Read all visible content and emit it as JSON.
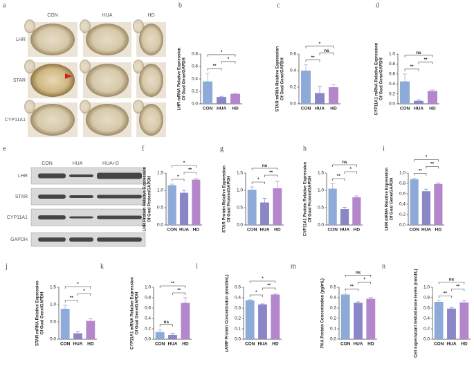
{
  "ihc": {
    "panel": "a",
    "columns": [
      "CON",
      "HUA",
      "HD"
    ],
    "rows": [
      "LHR",
      "STAR",
      "CYP11A1"
    ]
  },
  "western": {
    "panel": "e",
    "columns": [
      "CON",
      "HUA",
      "HUA+D"
    ],
    "rows": [
      "LHR",
      "STAR",
      "CYP11A1",
      "GAPDH"
    ]
  },
  "chart_data": [
    {
      "type": "bar",
      "panel": "b",
      "ylabel": [
        "LHR mRNA Relative Expression",
        "Of Goal Gene/GAPDH"
      ],
      "categories": [
        "CON",
        "HUA",
        "HD"
      ],
      "values": [
        0.36,
        0.11,
        0.16
      ],
      "errors": [
        0.13,
        0.01,
        0.01
      ],
      "colors": [
        "#8eaad8",
        "#8a86c8",
        "#b486cc"
      ],
      "ylim": [
        0,
        0.8
      ],
      "yticks": [
        {
          "value": 0,
          "label": "0.0"
        },
        0.2,
        0.4,
        0.6,
        0.8
      ],
      "significance": [
        {
          "groups": [
            "CON",
            "HUA"
          ],
          "label": "**"
        },
        {
          "groups": [
            "HUA",
            "HD"
          ],
          "label": "*"
        },
        {
          "groups": [
            "CON",
            "HD"
          ],
          "label": "*"
        }
      ]
    },
    {
      "type": "bar",
      "panel": "c",
      "ylabel": [
        "STAR mRNA Relative Expression",
        "Of Goal Gene/GAPDH"
      ],
      "categories": [
        "CON",
        "HUA",
        "HD"
      ],
      "values": [
        0.4,
        0.13,
        0.2
      ],
      "errors": [
        0.07,
        0.08,
        0.03
      ],
      "colors": [
        "#8eaad8",
        "#8a86c8",
        "#b486cc"
      ],
      "ylim": [
        0,
        0.6
      ],
      "yticks": [
        {
          "value": 0,
          "label": "0.0"
        },
        0.2,
        0.4,
        0.6
      ],
      "significance": [
        {
          "groups": [
            "CON",
            "HUA"
          ],
          "label": "**"
        },
        {
          "groups": [
            "HUA",
            "HD"
          ],
          "label": "ns"
        },
        {
          "groups": [
            "CON",
            "HD"
          ],
          "label": "*"
        }
      ]
    },
    {
      "type": "bar",
      "panel": "d",
      "ylabel": [
        "CYP11A1 mRNA Relative Expression",
        "Of Goal Gene/GAPDH"
      ],
      "categories": [
        "CON",
        "HUA",
        "HD"
      ],
      "values": [
        0.45,
        0.06,
        0.26
      ],
      "errors": [
        0.15,
        0.02,
        0.02
      ],
      "colors": [
        "#8eaad8",
        "#8a86c8",
        "#b486cc"
      ],
      "ylim": [
        0,
        1.0
      ],
      "yticks": [
        {
          "value": 0,
          "label": "0.0"
        },
        0.2,
        0.4,
        0.6,
        0.8,
        {
          "value": 1.0,
          "label": "1.0"
        }
      ],
      "significance": [
        {
          "groups": [
            "CON",
            "HUA"
          ],
          "label": "**"
        },
        {
          "groups": [
            "HUA",
            "HD"
          ],
          "label": "**"
        },
        {
          "groups": [
            "CON",
            "HD"
          ],
          "label": "ns"
        }
      ]
    },
    {
      "type": "bar",
      "panel": "f",
      "ylabel": [
        "LHR Protein Relative Expression",
        "Of Goal Protein/GAPDH"
      ],
      "categories": [
        "CON",
        "HUA",
        "HD"
      ],
      "values": [
        1.15,
        0.93,
        1.31
      ],
      "errors": [
        0.03,
        0.08,
        0.03
      ],
      "colors": [
        "#8eaad8",
        "#8a86c8",
        "#b486cc"
      ],
      "ylim": [
        0,
        1.5
      ],
      "yticks": [
        {
          "value": 0,
          "label": "0.0"
        },
        0.5,
        {
          "value": 1.0,
          "label": "1.0"
        },
        1.5
      ],
      "significance": [
        {
          "groups": [
            "CON",
            "HUA"
          ],
          "label": "*"
        },
        {
          "groups": [
            "HUA",
            "HD"
          ],
          "label": "**"
        },
        {
          "groups": [
            "CON",
            "HD"
          ],
          "label": "*"
        }
      ]
    },
    {
      "type": "bar",
      "panel": "g",
      "ylabel": [
        "STAR Protein Relative Expression",
        "Of Goal Protein/GAPDH"
      ],
      "categories": [
        "CON",
        "HUA",
        "HD"
      ],
      "values": [
        1.02,
        0.65,
        1.06
      ],
      "errors": [
        0.08,
        0.12,
        0.2
      ],
      "colors": [
        "#8eaad8",
        "#8a86c8",
        "#b486cc"
      ],
      "ylim": [
        0,
        1.5
      ],
      "yticks": [
        {
          "value": 0,
          "label": "0.0"
        },
        0.5,
        {
          "value": 1.0,
          "label": "1.0"
        },
        1.5
      ],
      "significance": [
        {
          "groups": [
            "CON",
            "HUA"
          ],
          "label": "*"
        },
        {
          "groups": [
            "HUA",
            "HD"
          ],
          "label": "**"
        },
        {
          "groups": [
            "CON",
            "HD"
          ],
          "label": "ns"
        }
      ]
    },
    {
      "type": "bar",
      "panel": "h",
      "ylabel": [
        "CYP11A1 Protein Relative Expression",
        "Of Goal Protein/GAPDH"
      ],
      "categories": [
        "CON",
        "HUA",
        "HD"
      ],
      "values": [
        1.05,
        0.46,
        0.8
      ],
      "errors": [
        0.15,
        0.05,
        0.04
      ],
      "colors": [
        "#8eaad8",
        "#8a86c8",
        "#b486cc"
      ],
      "ylim": [
        0,
        1.5
      ],
      "yticks": [
        {
          "value": 0,
          "label": "0.0"
        },
        0.5,
        {
          "value": 1.0,
          "label": "1.0"
        },
        1.5
      ],
      "significance": [
        {
          "groups": [
            "CON",
            "HUA"
          ],
          "label": "**"
        },
        {
          "groups": [
            "HUA",
            "HD"
          ],
          "label": "*"
        },
        {
          "groups": [
            "CON",
            "HD"
          ],
          "label": "ns"
        }
      ]
    },
    {
      "type": "bar",
      "panel": "i",
      "ylabel": [
        "LHR mRNA Relative Expression",
        "Of Goal Gene/GAPDH"
      ],
      "categories": [
        "CON",
        "HUA",
        "HD"
      ],
      "values": [
        0.88,
        0.65,
        0.79
      ],
      "errors": [
        0.02,
        0.04,
        0.02
      ],
      "colors": [
        "#8eaad8",
        "#8a86c8",
        "#b486cc"
      ],
      "ylim": [
        0,
        1.0
      ],
      "yticks": [
        {
          "value": 0,
          "label": "0.0"
        },
        0.2,
        0.4,
        0.6,
        0.8,
        {
          "value": 1.0,
          "label": "1.0"
        }
      ],
      "significance": [
        {
          "groups": [
            "CON",
            "HUA"
          ],
          "label": "**"
        },
        {
          "groups": [
            "HUA",
            "HD"
          ],
          "label": "**"
        },
        {
          "groups": [
            "CON",
            "HD"
          ],
          "label": "*"
        }
      ]
    },
    {
      "type": "bar",
      "panel": "j",
      "ylabel": [
        "STAR mRNA Relative Expression",
        "Of Goal Gene/GAPDH"
      ],
      "categories": [
        "CON",
        "HUA",
        "HD"
      ],
      "values": [
        0.88,
        0.17,
        0.53
      ],
      "errors": [
        0.1,
        0.05,
        0.06
      ],
      "colors": [
        "#8eaad8",
        "#8a86c8",
        "#b486cc"
      ],
      "ylim": [
        0,
        1.5
      ],
      "yticks": [
        {
          "value": 0,
          "label": "0.0"
        },
        0.5,
        {
          "value": 1.0,
          "label": "1.0"
        },
        1.5
      ],
      "significance": [
        {
          "groups": [
            "CON",
            "HUA"
          ],
          "label": "**"
        },
        {
          "groups": [
            "HUA",
            "HD"
          ],
          "label": "*"
        },
        {
          "groups": [
            "CON",
            "HD"
          ],
          "label": "*"
        }
      ]
    },
    {
      "type": "bar",
      "panel": "k",
      "ylabel": [
        "CYP11A1 mRNA Relative Expression",
        "Of Goal Gene/GAPDH"
      ],
      "categories": [
        "CON",
        "HUA",
        "HD"
      ],
      "values": [
        0.14,
        0.08,
        0.7
      ],
      "errors": [
        0.05,
        0.03,
        0.1
      ],
      "colors": [
        "#8eaad8",
        "#8a86c8",
        "#b486cc"
      ],
      "ylim": [
        0,
        1.0
      ],
      "yticks": [
        {
          "value": 0,
          "label": "0.0"
        },
        0.2,
        0.4,
        0.6,
        0.8,
        {
          "value": 1.0,
          "label": "1.0"
        }
      ],
      "significance": [
        {
          "groups": [
            "CON",
            "HUA"
          ],
          "label": "ns"
        },
        {
          "groups": [
            "HUA",
            "HD"
          ],
          "label": "**"
        },
        {
          "groups": [
            "CON",
            "HD"
          ],
          "label": "**"
        }
      ]
    },
    {
      "type": "bar",
      "panel": "l",
      "ylabel": [
        "cAMP Protein Concentration (nmol/mL)"
      ],
      "categories": [
        "CON",
        "HUA",
        "HD"
      ],
      "values": [
        0.375,
        0.335,
        0.43
      ],
      "errors": [
        0.005,
        0.005,
        0.005
      ],
      "colors": [
        "#8eaad8",
        "#8a86c8",
        "#b486cc"
      ],
      "ylim": [
        0,
        0.5
      ],
      "yticks": [
        {
          "value": 0,
          "label": "0.0"
        },
        0.1,
        0.2,
        0.3,
        0.4,
        0.5
      ],
      "significance": [
        {
          "groups": [
            "CON",
            "HUA"
          ],
          "label": "*"
        },
        {
          "groups": [
            "HUA",
            "HD"
          ],
          "label": "**"
        },
        {
          "groups": [
            "CON",
            "HD"
          ],
          "label": "*"
        }
      ]
    },
    {
      "type": "bar",
      "panel": "m",
      "ylabel": [
        "PKA Protein Concentration (pg/mL)"
      ],
      "categories": [
        "CON",
        "HUA",
        "HD"
      ],
      "values": [
        0.43,
        0.35,
        0.39
      ],
      "errors": [
        0.008,
        0.01,
        0.012
      ],
      "colors": [
        "#8eaad8",
        "#8a86c8",
        "#b486cc"
      ],
      "ylim": [
        0,
        0.5
      ],
      "yticks": [
        {
          "value": 0,
          "label": "0.0"
        },
        0.1,
        0.2,
        0.3,
        0.4,
        0.5
      ],
      "significance": [
        {
          "groups": [
            "CON",
            "HUA"
          ],
          "label": "**"
        },
        {
          "groups": [
            "HUA",
            "HD"
          ],
          "label": "*"
        },
        {
          "groups": [
            "CON",
            "HD"
          ],
          "label": "ns"
        }
      ]
    },
    {
      "type": "bar",
      "panel": "n",
      "ylabel": [
        "Cell supernatant testosterone levels (nmol/L)"
      ],
      "categories": [
        "CON",
        "HUA",
        "HD"
      ],
      "values": [
        0.72,
        0.59,
        0.71
      ],
      "errors": [
        0.02,
        0.02,
        0.03
      ],
      "colors": [
        "#8eaad8",
        "#8a86c8",
        "#b486cc"
      ],
      "ylim": [
        0,
        1.0
      ],
      "yticks": [
        {
          "value": 0,
          "label": "0.0"
        },
        0.2,
        0.4,
        0.6,
        0.8,
        {
          "value": 1.0,
          "label": "1.0"
        }
      ],
      "significance": [
        {
          "groups": [
            "CON",
            "HUA"
          ],
          "label": "**"
        },
        {
          "groups": [
            "HUA",
            "HD"
          ],
          "label": "**"
        },
        {
          "groups": [
            "CON",
            "HD"
          ],
          "label": "ns"
        }
      ]
    }
  ]
}
